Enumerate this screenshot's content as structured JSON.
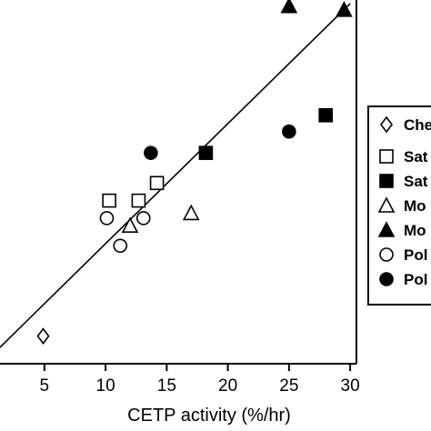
{
  "chart_data": {
    "type": "scatter",
    "xlabel": "CETP activity (%/hr)",
    "ylabel": "",
    "title": "",
    "xlim": [
      0,
      30
    ],
    "x_ticks": [
      "5",
      "10",
      "15",
      "20",
      "25",
      "30"
    ],
    "grid": false,
    "legend_position": "right",
    "trendline": {
      "x": [
        0,
        30
      ],
      "y": [
        0.0,
        28.7
      ]
    },
    "series": [
      {
        "name": "Che",
        "marker": "diamond-open",
        "points": [
          {
            "x": 4.9,
            "y": 2.2
          }
        ]
      },
      {
        "name": "Sat",
        "marker": "square-open",
        "points": [
          {
            "x": 10.3,
            "y": 13.0
          },
          {
            "x": 12.7,
            "y": 13.0
          },
          {
            "x": 14.2,
            "y": 14.4
          }
        ]
      },
      {
        "name": "Sat",
        "marker": "square-filled",
        "points": [
          {
            "x": 18.2,
            "y": 16.8
          },
          {
            "x": 28.0,
            "y": 19.8
          }
        ]
      },
      {
        "name": "Mo",
        "marker": "triangle-open",
        "points": [
          {
            "x": 12.0,
            "y": 11.0
          },
          {
            "x": 17.0,
            "y": 12.0
          }
        ]
      },
      {
        "name": "Mo",
        "marker": "triangle-filled",
        "points": [
          {
            "x": 25.0,
            "y": 28.5
          },
          {
            "x": 29.5,
            "y": 28.2
          }
        ]
      },
      {
        "name": "Pol",
        "marker": "circle-open",
        "points": [
          {
            "x": 10.1,
            "y": 11.6
          },
          {
            "x": 13.1,
            "y": 11.6
          },
          {
            "x": 11.2,
            "y": 9.4
          }
        ]
      },
      {
        "name": "Pol",
        "marker": "circle-filled",
        "points": [
          {
            "x": 13.7,
            "y": 16.8
          },
          {
            "x": 25.0,
            "y": 18.5
          }
        ]
      }
    ]
  }
}
